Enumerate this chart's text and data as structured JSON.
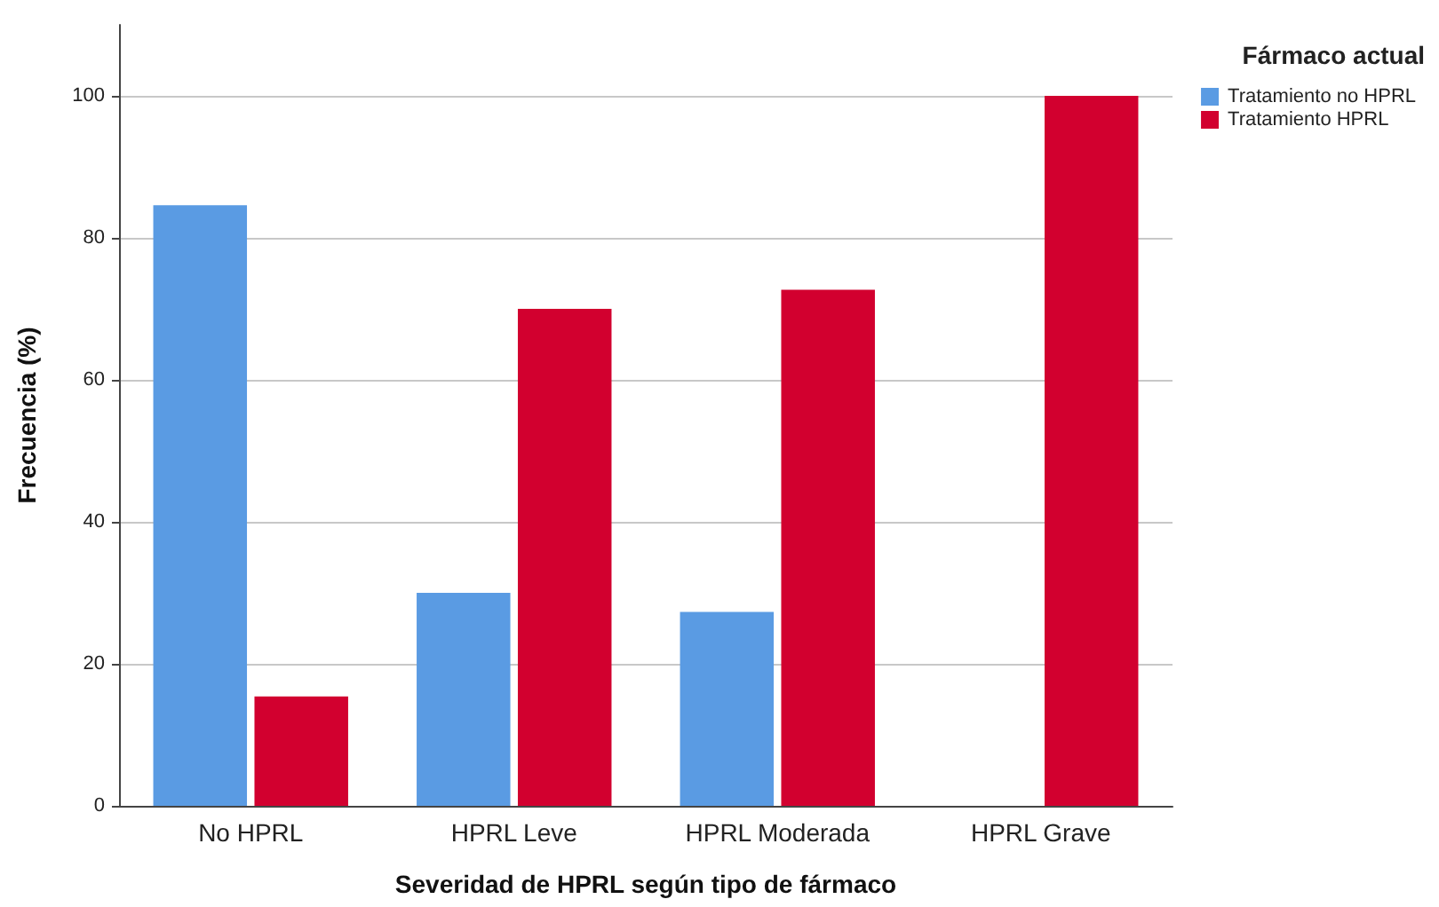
{
  "chart_data": {
    "type": "bar",
    "xlabel": "Severidad de HPRL según tipo de fármaco",
    "ylabel": "Frecuencia (%)",
    "legend_title": "Fármaco actual",
    "categories": [
      "No HPRL",
      "HPRL Leve",
      "HPRL Moderada",
      "HPRL Grave"
    ],
    "series": [
      {
        "name": "Tratamiento no HPRL",
        "color": "#5a9be3",
        "values": [
          84.6,
          30,
          27.3,
          null
        ]
      },
      {
        "name": "Tratamiento HPRL",
        "color": "#d2002f",
        "values": [
          15.4,
          70,
          72.7,
          100
        ]
      }
    ],
    "ylim": [
      0,
      110
    ],
    "yticks": [
      0,
      20,
      40,
      60,
      80,
      100
    ],
    "grid": "y",
    "legend": "top right"
  }
}
